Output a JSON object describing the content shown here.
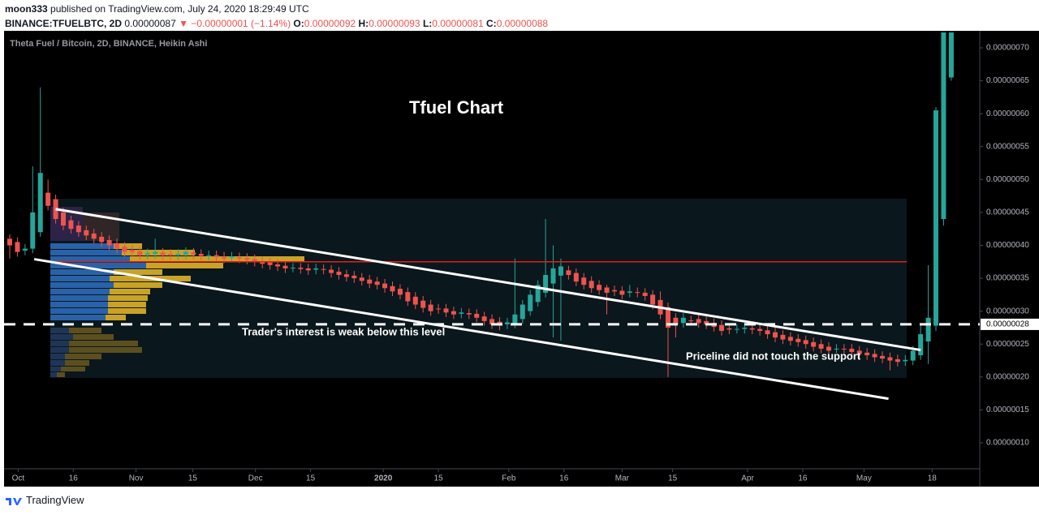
{
  "header": {
    "author": "moon333",
    "published": "published on TradingView.com, July 24, 2020 18:29:49 UTC",
    "symbol": "BINANCE:TFUELBTC, 2D",
    "last": "0.00000087",
    "change": "▼ −0.00000001 (−1.14%)",
    "quote": [
      {
        "label": "O:",
        "value": "0.00000092"
      },
      {
        "label": "H:",
        "value": "0.00000093"
      },
      {
        "label": "L:",
        "value": "0.00000081"
      },
      {
        "label": "C:",
        "value": "0.00000088"
      }
    ]
  },
  "footer": {
    "brand": "TradingView"
  },
  "chart_data": {
    "type": "candlestick",
    "legend": "Theta Fuel / Bitcoin, 2D, BINANCE, Heikin Ashi",
    "title": "Tfuel Chart",
    "up_color": "#26a69a",
    "down_color": "#ef5350",
    "ylim": [
      6.06e-08,
      7.234e-07
    ],
    "yticks": [
      {
        "value": 1e-07,
        "label": "0.00000010"
      },
      {
        "value": 1.5e-07,
        "label": "0.00000015"
      },
      {
        "value": 2e-07,
        "label": "0.00000020"
      },
      {
        "value": 2.5e-07,
        "label": "0.00000025"
      },
      {
        "value": 3e-07,
        "label": "0.00000030"
      },
      {
        "value": 3.5e-07,
        "label": "0.00000035"
      },
      {
        "value": 4e-07,
        "label": "0.00000040"
      },
      {
        "value": 4.5e-07,
        "label": "0.00000045"
      },
      {
        "value": 5e-07,
        "label": "0.00000050"
      },
      {
        "value": 5.5e-07,
        "label": "0.00000055"
      },
      {
        "value": 6e-07,
        "label": "0.00000060"
      },
      {
        "value": 6.5e-07,
        "label": "0.00000065"
      },
      {
        "value": 7e-07,
        "label": "0.00000070"
      }
    ],
    "xticks": [
      {
        "value": 1.1,
        "label": "Oct"
      },
      {
        "value": 8.3,
        "label": "16"
      },
      {
        "value": 16.5,
        "label": "Nov"
      },
      {
        "value": 23.9,
        "label": "15"
      },
      {
        "value": 32.1,
        "label": "Dec"
      },
      {
        "value": 39.3,
        "label": "15"
      },
      {
        "value": 48.8,
        "label": "2020"
      },
      {
        "value": 56,
        "label": "15"
      },
      {
        "value": 65.2,
        "label": "Feb"
      },
      {
        "value": 72.4,
        "label": "16"
      },
      {
        "value": 80,
        "label": "Mar"
      },
      {
        "value": 86.6,
        "label": "15"
      },
      {
        "value": 96.4,
        "label": "Apr"
      },
      {
        "value": 103.6,
        "label": "16"
      },
      {
        "value": 111.6,
        "label": "May"
      },
      {
        "value": 120.5,
        "label": "18"
      }
    ],
    "ohlc": [
      [
        4.1e-07,
        4.17e-07,
        3.8e-07,
        4e-07
      ],
      [
        4.05e-07,
        4.12e-07,
        3.83e-07,
        3.9e-07
      ],
      [
        3.92e-07,
        4.02e-07,
        3.85e-07,
        3.95e-07
      ],
      [
        3.95e-07,
        5.2e-07,
        3.88e-07,
        4.5e-07
      ],
      [
        4.2e-07,
        6.4e-07,
        4.13e-07,
        5.1e-07
      ],
      [
        4.8e-07,
        5e-07,
        4.53e-07,
        4.6e-07
      ],
      [
        4.7e-07,
        4.77e-07,
        4.33e-07,
        4.4e-07
      ],
      [
        4.5e-07,
        4.57e-07,
        4.23e-07,
        4.3e-07
      ],
      [
        4.38e-07,
        4.45e-07,
        4.18e-07,
        4.25e-07
      ],
      [
        4.3e-07,
        4.37e-07,
        4.13e-07,
        4.2e-07
      ],
      [
        4.23e-07,
        4.3e-07,
        4.08e-07,
        4.15e-07
      ],
      [
        4.18e-07,
        4.25e-07,
        4.03e-07,
        4.1e-07
      ],
      [
        4.13e-07,
        4.2e-07,
        3.98e-07,
        4.05e-07
      ],
      [
        4.08e-07,
        4.15e-07,
        3.93e-07,
        4e-07
      ],
      [
        4.03e-07,
        4.1e-07,
        3.88e-07,
        3.95e-07
      ],
      [
        3.98e-07,
        4.05e-07,
        3.83e-07,
        3.9e-07
      ],
      [
        3.93e-07,
        4e-07,
        3.83e-07,
        3.9e-07
      ],
      [
        3.91e-07,
        3.98e-07,
        3.78e-07,
        3.85e-07
      ],
      [
        3.86e-07,
        3.95e-07,
        3.79e-07,
        3.88e-07
      ],
      [
        3.87e-07,
        4.1e-07,
        3.8e-07,
        3.9e-07
      ],
      [
        3.89e-07,
        3.96e-07,
        3.78e-07,
        3.85e-07
      ],
      [
        3.87e-07,
        3.94e-07,
        3.78e-07,
        3.85e-07
      ],
      [
        3.85e-07,
        3.94e-07,
        3.78e-07,
        3.87e-07
      ],
      [
        3.86e-07,
        3.97e-07,
        3.79e-07,
        3.9e-07
      ],
      [
        3.89e-07,
        3.96e-07,
        3.79e-07,
        3.86e-07
      ],
      [
        3.87e-07,
        3.94e-07,
        3.77e-07,
        3.84e-07
      ],
      [
        3.84e-07,
        3.92e-07,
        3.77e-07,
        3.85e-07
      ],
      [
        3.85e-07,
        3.92e-07,
        3.75e-07,
        3.82e-07
      ],
      [
        3.83e-07,
        3.9e-07,
        3.73e-07,
        3.8e-07
      ],
      [
        3.81e-07,
        3.9e-07,
        3.74e-07,
        3.83e-07
      ],
      [
        3.82e-07,
        3.89e-07,
        3.73e-07,
        3.8e-07
      ],
      [
        3.81e-07,
        3.88e-07,
        3.71e-07,
        3.78e-07
      ],
      [
        3.79e-07,
        3.86e-07,
        3.68e-07,
        3.75e-07
      ],
      [
        3.76e-07,
        3.83e-07,
        3.65e-07,
        3.72e-07
      ],
      [
        3.74e-07,
        3.81e-07,
        3.63e-07,
        3.7e-07
      ],
      [
        3.71e-07,
        3.78e-07,
        3.61e-07,
        3.68e-07
      ],
      [
        3.69e-07,
        3.76e-07,
        3.58e-07,
        3.65e-07
      ],
      [
        3.66e-07,
        3.73e-07,
        3.59e-07,
        3.66e-07
      ],
      [
        3.66e-07,
        3.73e-07,
        3.57e-07,
        3.64e-07
      ],
      [
        3.65e-07,
        3.72e-07,
        3.55e-07,
        3.62e-07
      ],
      [
        3.63e-07,
        3.72e-07,
        3.56e-07,
        3.65e-07
      ],
      [
        3.64e-07,
        3.71e-07,
        3.56e-07,
        3.63e-07
      ],
      [
        3.63e-07,
        3.7e-07,
        3.51e-07,
        3.58e-07
      ],
      [
        3.6e-07,
        3.67e-07,
        3.48e-07,
        3.55e-07
      ],
      [
        3.56e-07,
        3.63e-07,
        3.45e-07,
        3.52e-07
      ],
      [
        3.54e-07,
        3.61e-07,
        3.43e-07,
        3.5e-07
      ],
      [
        3.51e-07,
        3.58e-07,
        3.39e-07,
        3.46e-07
      ],
      [
        3.48e-07,
        3.55e-07,
        3.35e-07,
        3.42e-07
      ],
      [
        3.45e-07,
        3.52e-07,
        3.33e-07,
        3.4e-07
      ],
      [
        3.42e-07,
        3.49e-07,
        3.28e-07,
        3.35e-07
      ],
      [
        3.38e-07,
        3.45e-07,
        3.23e-07,
        3.3e-07
      ],
      [
        3.34e-07,
        3.41e-07,
        3.18e-07,
        3.25e-07
      ],
      [
        3.29e-07,
        3.36e-07,
        3.08e-07,
        3.15e-07
      ],
      [
        3.22e-07,
        3.29e-07,
        3.03e-07,
        3.1e-07
      ],
      [
        3.16e-07,
        3.23e-07,
        2.98e-07,
        3.05e-07
      ],
      [
        3.1e-07,
        3.17e-07,
        2.93e-07,
        3e-07
      ],
      [
        3.04e-07,
        3.11e-07,
        2.96e-07,
        3.03e-07
      ],
      [
        3.04e-07,
        3.11e-07,
        2.91e-07,
        2.98e-07
      ],
      [
        3e-07,
        3.07e-07,
        2.88e-07,
        2.95e-07
      ],
      [
        2.96e-07,
        3.05e-07,
        2.89e-07,
        2.98e-07
      ],
      [
        2.97e-07,
        3.04e-07,
        2.88e-07,
        2.95e-07
      ],
      [
        2.96e-07,
        3.03e-07,
        2.83e-07,
        2.9e-07
      ],
      [
        2.92e-07,
        2.99e-07,
        2.78e-07,
        2.85e-07
      ],
      [
        2.88e-07,
        2.95e-07,
        2.73e-07,
        2.8e-07
      ],
      [
        2.84e-07,
        2.91e-07,
        2.71e-07,
        2.78e-07
      ],
      [
        2.8e-07,
        2.9e-07,
        2.73e-07,
        2.83e-07
      ],
      [
        2.81e-07,
        3.8e-07,
        2.74e-07,
        2.95e-07
      ],
      [
        2.88e-07,
        3.17e-07,
        2.81e-07,
        3.1e-07
      ],
      [
        3e-07,
        3.32e-07,
        2.93e-07,
        3.25e-07
      ],
      [
        3.14e-07,
        3.47e-07,
        3.07e-07,
        3.4e-07
      ],
      [
        3.28e-07,
        4.4e-07,
        3.21e-07,
        3.55e-07
      ],
      [
        3.42e-07,
        4e-07,
        2.6e-07,
        3.65e-07
      ],
      [
        3.54e-07,
        3.8e-07,
        2.55e-07,
        3.68e-07
      ],
      [
        3.62e-07,
        3.69e-07,
        3.48e-07,
        3.55e-07
      ],
      [
        3.58e-07,
        3.65e-07,
        3.38e-07,
        3.45e-07
      ],
      [
        3.51e-07,
        3.58e-07,
        3.33e-07,
        3.4e-07
      ],
      [
        3.46e-07,
        3.53e-07,
        3.28e-07,
        3.35e-07
      ],
      [
        3.4e-07,
        3.47e-07,
        3.25e-07,
        3.32e-07
      ],
      [
        3.36e-07,
        3.4e-07,
        2.95e-07,
        3.28e-07
      ],
      [
        3.32e-07,
        3.39e-07,
        3.23e-07,
        3.3e-07
      ],
      [
        3.31e-07,
        3.38e-07,
        3.18e-07,
        3.25e-07
      ],
      [
        3.28e-07,
        3.4e-07,
        3.21e-07,
        3.3e-07
      ],
      [
        3.29e-07,
        3.36e-07,
        3.21e-07,
        3.28e-07
      ],
      [
        3.28e-07,
        3.35e-07,
        3.16e-07,
        3.23e-07
      ],
      [
        3.25e-07,
        3.32e-07,
        3.03e-07,
        3.1e-07
      ],
      [
        3.17e-07,
        3.3e-07,
        2.88e-07,
        2.95e-07
      ],
      [
        3.06e-07,
        3.13e-07,
        2e-07,
        2.75e-07
      ],
      [
        2.9e-07,
        2.97e-07,
        2.6e-07,
        2.8e-07
      ],
      [
        2.82e-07,
        2.97e-07,
        2.75e-07,
        2.9e-07
      ],
      [
        2.86e-07,
        2.93e-07,
        2.78e-07,
        2.85e-07
      ],
      [
        2.88e-07,
        2.95e-07,
        2.75e-07,
        2.82e-07
      ],
      [
        2.85e-07,
        2.92e-07,
        2.73e-07,
        2.8e-07
      ],
      [
        2.82e-07,
        2.89e-07,
        2.69e-07,
        2.76e-07
      ],
      [
        2.79e-07,
        2.86e-07,
        2.63e-07,
        2.7e-07
      ],
      [
        2.74e-07,
        2.81e-07,
        2.65e-07,
        2.72e-07
      ],
      [
        2.73e-07,
        2.8e-07,
        2.66e-07,
        2.73e-07
      ],
      [
        2.73e-07,
        2.82e-07,
        2.66e-07,
        2.75e-07
      ],
      [
        2.74e-07,
        2.81e-07,
        2.65e-07,
        2.72e-07
      ],
      [
        2.73e-07,
        2.8e-07,
        2.63e-07,
        2.7e-07
      ],
      [
        2.71e-07,
        2.78e-07,
        2.58e-07,
        2.65e-07
      ],
      [
        2.68e-07,
        2.75e-07,
        2.53e-07,
        2.6e-07
      ],
      [
        2.64e-07,
        2.71e-07,
        2.5e-07,
        2.57e-07
      ],
      [
        2.61e-07,
        2.68e-07,
        2.48e-07,
        2.55e-07
      ],
      [
        2.58e-07,
        2.65e-07,
        2.46e-07,
        2.53e-07
      ],
      [
        2.56e-07,
        2.63e-07,
        2.43e-07,
        2.5e-07
      ],
      [
        2.53e-07,
        2.6e-07,
        2.39e-07,
        2.46e-07
      ],
      [
        2.5e-07,
        2.57e-07,
        2.36e-07,
        2.43e-07
      ],
      [
        2.46e-07,
        2.53e-07,
        2.33e-07,
        2.4e-07
      ],
      [
        2.43e-07,
        2.5e-07,
        2.36e-07,
        2.43e-07
      ],
      [
        2.43e-07,
        2.5e-07,
        2.35e-07,
        2.42e-07
      ],
      [
        2.43e-07,
        2.5e-07,
        2.31e-07,
        2.38e-07
      ],
      [
        2.4e-07,
        2.47e-07,
        2.28e-07,
        2.35e-07
      ],
      [
        2.37e-07,
        2.44e-07,
        2.26e-07,
        2.33e-07
      ],
      [
        2.35e-07,
        2.42e-07,
        2.23e-07,
        2.3e-07
      ],
      [
        2.32e-07,
        2.39e-07,
        2.21e-07,
        2.28e-07
      ],
      [
        2.3e-07,
        2.37e-07,
        2.1e-07,
        2.25e-07
      ],
      [
        2.27e-07,
        2.34e-07,
        2.16e-07,
        2.23e-07
      ],
      [
        2.24e-07,
        2.33e-07,
        2.17e-07,
        2.26e-07
      ],
      [
        2.25e-07,
        2.47e-07,
        2.18e-07,
        2.4e-07
      ],
      [
        2.33e-07,
        2.8e-07,
        2.26e-07,
        2.65e-07
      ],
      [
        2.54e-07,
        3.7e-07,
        2.2e-07,
        2.9e-07
      ],
      [
        2.78e-07,
        6.1e-07,
        2.7e-07,
        6.05e-07
      ],
      [
        4.4e-07,
        8e-07,
        4.3e-07,
        7.6e-07
      ],
      [
        6.55e-07,
        8e-07,
        6.5e-07,
        8e-07
      ]
    ],
    "levels": [
      {
        "value": 3.75e-07,
        "color": "#e0201c",
        "style": "solid"
      },
      {
        "value": 2.8e-07,
        "label": "0.00000028",
        "color": "#ffffff",
        "style": "dashed"
      }
    ],
    "trendlines": [
      {
        "points": [
          [
            6,
            4.55e-07
          ],
          [
            119,
            2.41e-07
          ]
        ],
        "color": "#ffffff"
      },
      {
        "points": [
          [
            3.2,
            3.79e-07
          ],
          [
            114.8,
            1.67e-07
          ]
        ],
        "color": "#ffffff"
      }
    ],
    "annotations": [
      "Trader's interest is weak below this level",
      "Priceline did not touch the support"
    ]
  }
}
